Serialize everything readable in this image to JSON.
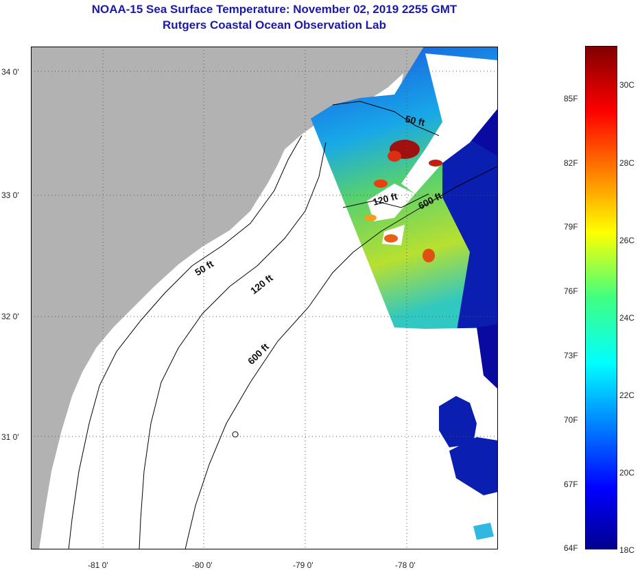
{
  "header": {
    "title": "NOAA-15 Sea Surface Temperature:  November 02, 2019 2255 GMT",
    "subtitle": "Rutgers Coastal Ocean Observation Lab"
  },
  "map": {
    "lat_labels": [
      "34 0'",
      "33 0'",
      "32 0'",
      "31 0'"
    ],
    "lon_labels": [
      "-81 0'",
      "-80 0'",
      "-79 0'",
      "-78 0'"
    ],
    "depth_labels": {
      "shelf_50_nw": "50 ft",
      "shelf_120_nw": "120 ft",
      "shelf_600_nw": "600 ft",
      "shelf_50_ne": "50 ft",
      "shelf_120_ne": "120 ft",
      "shelf_600_ne": "600 ft"
    },
    "colors": {
      "land": "#b2b2b2",
      "no_data": "#ffffff",
      "warm_anomaly": "#a01010",
      "cold_water": "#0a0aa0"
    }
  },
  "colorbar": {
    "fahrenheit_labels": [
      "85F",
      "82F",
      "79F",
      "76F",
      "73F",
      "70F",
      "67F",
      "64F"
    ],
    "celsius_labels": [
      "30C",
      "28C",
      "26C",
      "24C",
      "22C",
      "20C",
      "18C"
    ],
    "range_c": [
      18,
      31
    ]
  }
}
